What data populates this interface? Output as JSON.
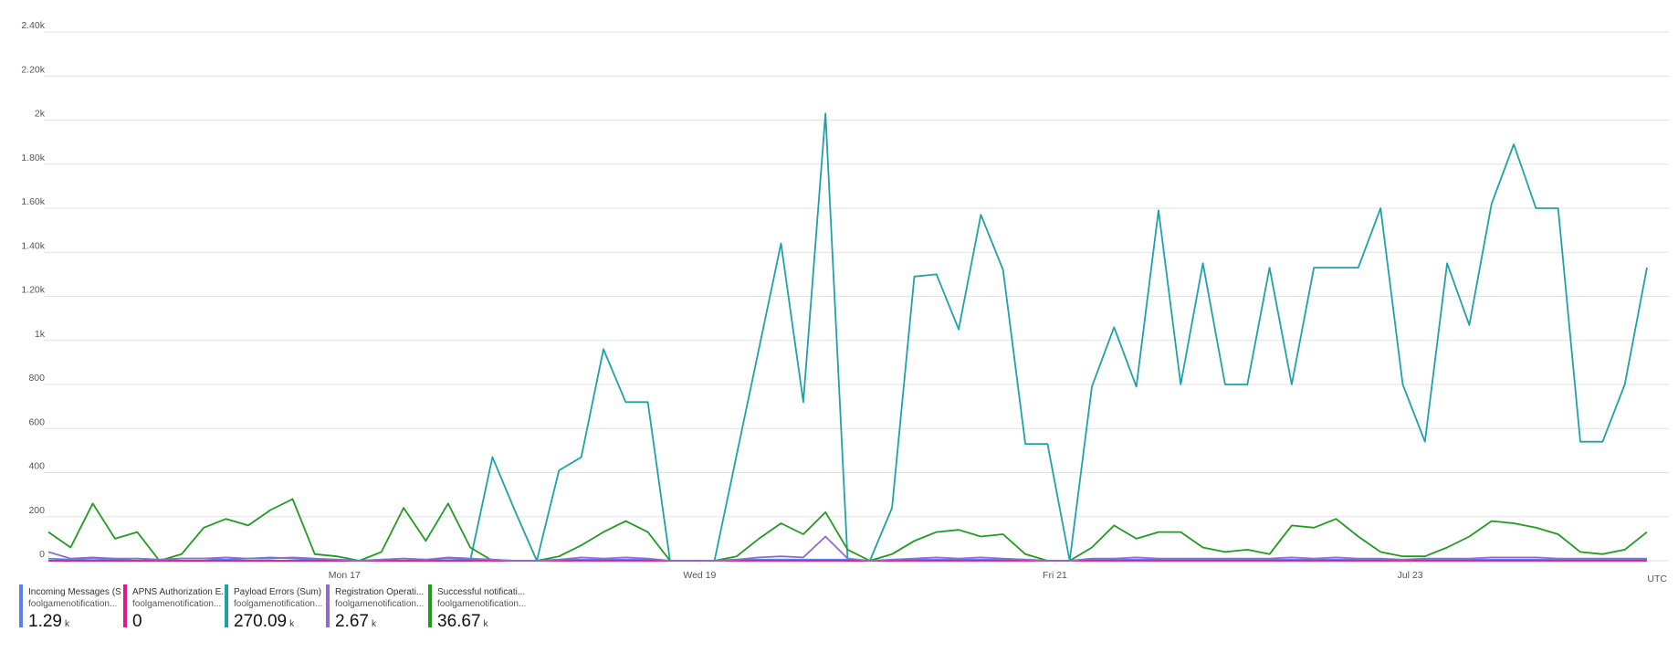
{
  "chart_data": {
    "type": "line",
    "x": [
      -40,
      -37,
      -34,
      -31,
      -28,
      -25,
      -22,
      -19,
      -16,
      -13,
      -10,
      -7,
      -4,
      -1,
      2,
      5,
      8,
      11,
      14,
      17,
      20,
      23,
      26,
      29,
      32,
      35,
      38,
      41,
      44,
      47,
      50,
      53,
      56,
      59,
      62,
      65,
      68,
      71,
      74,
      77,
      80,
      83,
      86,
      89,
      92,
      95,
      98,
      101,
      104,
      107,
      110,
      113,
      116,
      119,
      122,
      125,
      128,
      131,
      134,
      137,
      140,
      143,
      146,
      149,
      152,
      155,
      158,
      161,
      164,
      167,
      170,
      173,
      176
    ],
    "xlim": [
      -40,
      176
    ],
    "xticks": [
      {
        "value": 0,
        "label": "Mon 17"
      },
      {
        "value": 48,
        "label": "Wed 19"
      },
      {
        "value": 96,
        "label": "Fri 21"
      },
      {
        "value": 144,
        "label": "Jul 23"
      }
    ],
    "timezone": "UTC",
    "ylim": [
      0,
      2400
    ],
    "yticks": [
      0,
      200,
      400,
      600,
      800,
      {
        "value": 1000,
        "label": "1k"
      },
      {
        "value": 1200,
        "label": "1.20k"
      },
      {
        "value": 1400,
        "label": "1.40k"
      },
      {
        "value": 1600,
        "label": "1.60k"
      },
      {
        "value": 1800,
        "label": "1.80k"
      },
      {
        "value": 2000,
        "label": "2k"
      },
      {
        "value": 2200,
        "label": "2.20k"
      },
      {
        "value": 2400,
        "label": "2.40k"
      }
    ],
    "grid": true,
    "series": [
      {
        "name": "Incoming Messages (Sum)",
        "resource": "foolgamenotification...",
        "color": "#5b7ff0",
        "total": 1.29,
        "unit": "k",
        "values": [
          10,
          5,
          10,
          5,
          10,
          5,
          10,
          10,
          5,
          10,
          15,
          10,
          5,
          5,
          0,
          5,
          10,
          5,
          10,
          5,
          5,
          0,
          0,
          5,
          5,
          5,
          5,
          5,
          0,
          0,
          0,
          5,
          5,
          5,
          5,
          5,
          5,
          0,
          0,
          5,
          5,
          5,
          5,
          5,
          5,
          0,
          0,
          5,
          5,
          5,
          5,
          5,
          5,
          5,
          5,
          5,
          5,
          5,
          5,
          5,
          5,
          5,
          5,
          5,
          5,
          5,
          5,
          5,
          5,
          5,
          5,
          5,
          5
        ]
      },
      {
        "name": "APNS Authorization E...",
        "resource": "foolgamenotification...",
        "color": "#e3168a",
        "total": 0,
        "values": [
          0,
          0,
          0,
          0,
          0,
          0,
          0,
          0,
          0,
          0,
          0,
          0,
          0,
          0,
          0,
          0,
          0,
          0,
          0,
          0,
          0,
          0,
          0,
          0,
          0,
          0,
          0,
          0,
          0,
          0,
          0,
          0,
          0,
          0,
          0,
          0,
          0,
          0,
          0,
          0,
          0,
          0,
          0,
          0,
          0,
          0,
          0,
          0,
          0,
          0,
          0,
          0,
          0,
          0,
          0,
          0,
          0,
          0,
          0,
          0,
          0,
          0,
          0,
          0,
          0,
          0,
          0,
          0,
          0,
          0,
          0,
          0,
          0
        ]
      },
      {
        "name": "Payload Errors (Sum)",
        "resource": "foolgamenotification...",
        "color": "#1fa1a8",
        "total": 270.09,
        "unit": "k",
        "values": [
          0,
          0,
          0,
          0,
          0,
          0,
          0,
          0,
          0,
          0,
          0,
          0,
          0,
          0,
          0,
          0,
          0,
          0,
          0,
          0,
          470,
          230,
          0,
          410,
          470,
          960,
          720,
          720,
          0,
          0,
          0,
          480,
          960,
          1440,
          720,
          2030,
          0,
          0,
          240,
          1290,
          1300,
          1050,
          1570,
          1320,
          530,
          530,
          0,
          790,
          1060,
          790,
          1590,
          800,
          1350,
          800,
          800,
          1330,
          800,
          1330,
          1330,
          1330,
          1600,
          800,
          540,
          1350,
          1070,
          1620,
          1890,
          1600,
          1600,
          540,
          540,
          800,
          1330
        ]
      },
      {
        "name": "Registration Operati...",
        "resource": "foolgamenotification...",
        "color": "#8e6cc7",
        "total": 2.67,
        "unit": "k",
        "values": [
          40,
          10,
          15,
          10,
          10,
          5,
          10,
          10,
          15,
          10,
          10,
          15,
          10,
          5,
          0,
          5,
          10,
          5,
          15,
          10,
          5,
          0,
          0,
          5,
          15,
          10,
          15,
          10,
          0,
          0,
          0,
          5,
          15,
          20,
          15,
          110,
          10,
          0,
          5,
          10,
          15,
          10,
          15,
          10,
          5,
          0,
          0,
          10,
          10,
          15,
          10,
          10,
          10,
          10,
          10,
          10,
          15,
          10,
          15,
          10,
          10,
          5,
          10,
          10,
          10,
          15,
          15,
          15,
          10,
          10,
          10,
          10,
          10
        ]
      },
      {
        "name": "Successful notificati...",
        "resource": "foolgamenotification...",
        "color": "#1f9b1f",
        "total": 36.67,
        "unit": "k",
        "values": [
          130,
          60,
          260,
          100,
          130,
          0,
          30,
          150,
          190,
          160,
          230,
          280,
          30,
          20,
          0,
          40,
          240,
          90,
          260,
          60,
          0,
          0,
          0,
          20,
          70,
          130,
          180,
          130,
          0,
          0,
          0,
          20,
          100,
          170,
          120,
          220,
          50,
          0,
          30,
          90,
          130,
          140,
          110,
          120,
          30,
          0,
          0,
          60,
          160,
          100,
          130,
          130,
          60,
          40,
          50,
          30,
          160,
          150,
          190,
          110,
          40,
          20,
          20,
          60,
          110,
          180,
          170,
          150,
          120,
          40,
          30,
          50,
          130
        ]
      }
    ]
  }
}
